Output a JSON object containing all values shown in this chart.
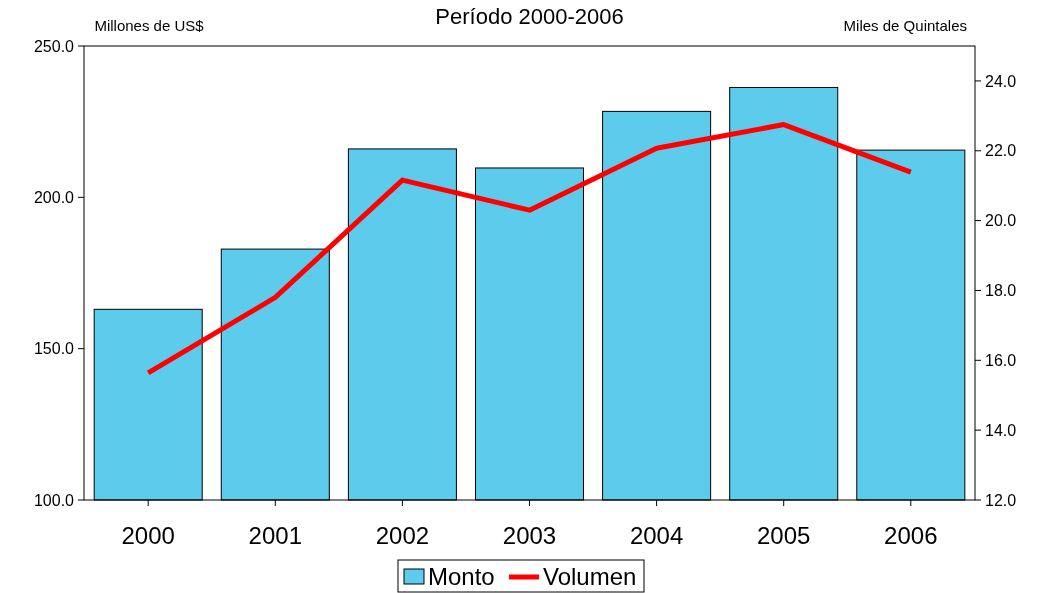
{
  "chart_data": {
    "type": "bar",
    "title": "Período 2000-2006",
    "ylabel": "Millones de US$",
    "y2label": "Miles de Quintales",
    "categories": [
      "2000",
      "2001",
      "2002",
      "2003",
      "2004",
      "2005",
      "2006"
    ],
    "series": [
      {
        "name": "Monto",
        "color": "#5ccbec",
        "values": [
          163,
          182.9,
          216,
          209.7,
          228.4,
          236.3,
          215.6
        ]
      },
      {
        "name": "Volumen",
        "type": "line",
        "axis": "y2",
        "color": "#ff0000",
        "values": [
          15.64,
          17.8,
          21.16,
          20.3,
          22.07,
          22.75,
          21.39
        ]
      }
    ],
    "ylim": [
      100,
      250
    ],
    "yticks": [
      {
        "value": 100,
        "label": "100.0"
      },
      {
        "value": 150,
        "label": "150.0"
      },
      {
        "value": 200,
        "label": "200.0"
      },
      {
        "value": 250,
        "label": "250.0"
      }
    ],
    "y2lim": [
      12,
      25
    ],
    "y2ticks": [
      {
        "value": 12,
        "label": "12.0"
      },
      {
        "value": 14,
        "label": "14.0"
      },
      {
        "value": 16,
        "label": "16.0"
      },
      {
        "value": 18,
        "label": "18.0"
      },
      {
        "value": 20,
        "label": "20.0"
      },
      {
        "value": 22,
        "label": "22.0"
      },
      {
        "value": 24,
        "label": "24.0"
      }
    ],
    "grid": false,
    "legend": "bottom",
    "marker": "none",
    "line_style": "solid"
  }
}
